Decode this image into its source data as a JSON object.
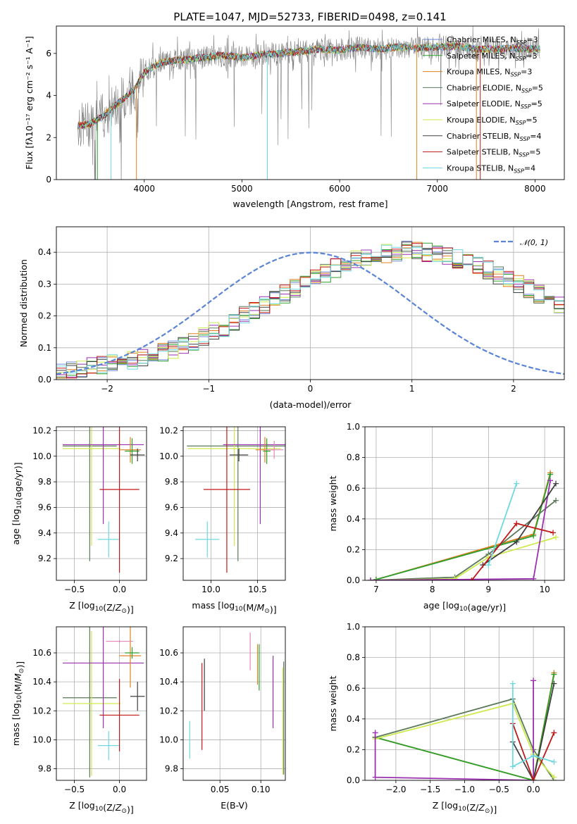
{
  "title": "PLATE=1047, MJD=52733, FIBERID=0498, z=0.141",
  "colors": {
    "Chabrier MILES": "#6f86d6",
    "Salpeter MILES": "#2ca02c",
    "Kroupa MILES": "#e08020",
    "Chabrier ELODIE": "#5a7a5a",
    "Salpeter ELODIE": "#9b30b0",
    "Kroupa ELODIE": "#cdea50",
    "Chabrier STELIB": "#404040",
    "Salpeter STELIB": "#c01818",
    "Kroupa STELIB": "#6fd8e0",
    "spectrum": "#808080",
    "pink": "#e088b8",
    "normal": "#5b84d6"
  },
  "chart_data": [
    {
      "id": "spectrum",
      "type": "line",
      "xlabel": "wavelength [Angstrom, rest frame]",
      "ylabel": "Flux [fλ10⁻¹⁷ erg cm⁻² s⁻¹ A⁻¹]",
      "xlim": [
        3100,
        8300
      ],
      "ylim": [
        0,
        7.3
      ],
      "xticks": [
        4000,
        5000,
        6000,
        7000,
        8000
      ],
      "yticks": [
        0,
        2,
        4,
        6
      ],
      "legend_position": "top-right",
      "legend": [
        {
          "key": "Chabrier MILES",
          "pre": "Chabrier MILES, N",
          "sub": "SSP",
          "post": "=3"
        },
        {
          "key": "Salpeter MILES",
          "pre": "Salpeter MILES, N",
          "sub": "SSP",
          "post": "=3"
        },
        {
          "key": "Kroupa MILES",
          "pre": "Kroupa MILES, N",
          "sub": "SSP",
          "post": "=3"
        },
        {
          "key": "Chabrier ELODIE",
          "pre": "Chabrier ELODIE, N",
          "sub": "SSP",
          "post": "=5"
        },
        {
          "key": "Salpeter ELODIE",
          "pre": "Salpeter ELODIE, N",
          "sub": "SSP",
          "post": "=5"
        },
        {
          "key": "Kroupa ELODIE",
          "pre": "Kroupa ELODIE, N",
          "sub": "SSP",
          "post": "=5"
        },
        {
          "key": "Chabrier STELIB",
          "pre": "Chabrier STELIB, N",
          "sub": "SSP",
          "post": "=4"
        },
        {
          "key": "Salpeter STELIB",
          "pre": "Salpeter STELIB, N",
          "sub": "SSP",
          "post": "=5"
        },
        {
          "key": "Kroupa STELIB",
          "pre": "Kroupa STELIB, N",
          "sub": "SSP",
          "post": "=4"
        }
      ],
      "data_wavelength": [
        3320,
        3450,
        3600,
        3750,
        3900,
        4000,
        4100,
        4200,
        4400,
        4600,
        4800,
        5000,
        5200,
        5400,
        5600,
        5800,
        6000,
        6200,
        6400,
        6600,
        6800,
        7000,
        7200,
        7400,
        7600,
        7800,
        8000,
        8050
      ],
      "data_flux": [
        2.55,
        2.65,
        3.1,
        3.7,
        4.3,
        5.1,
        5.4,
        5.6,
        5.7,
        5.8,
        5.9,
        5.8,
        5.95,
        6.0,
        6.1,
        6.2,
        6.15,
        6.3,
        6.2,
        6.3,
        6.25,
        6.3,
        6.35,
        6.2,
        6.2,
        6.25,
        6.2,
        6.2
      ],
      "model_dips": [
        {
          "key": "Salpeter MILES",
          "x": 3520
        },
        {
          "key": "Kroupa MILES",
          "x": 3920
        },
        {
          "key": "Kroupa STELIB",
          "x": 3660
        },
        {
          "key": "Kroupa STELIB",
          "x": 5260
        },
        {
          "key": "Kroupa MILES",
          "x": 6790
        },
        {
          "key": "Kroupa MILES",
          "x": 7400
        },
        {
          "key": "Salpeter STELIB",
          "x": 7440
        }
      ]
    },
    {
      "id": "residuals",
      "type": "bar",
      "xlabel": "(data-model)/error",
      "ylabel": "Normed distribution",
      "xlim": [
        -2.5,
        2.5
      ],
      "ylim": [
        0,
        0.48
      ],
      "xticks": [
        -2,
        -1,
        0,
        1,
        2
      ],
      "yticks": [
        0.0,
        0.1,
        0.2,
        0.3,
        0.4
      ],
      "grid": true,
      "legend_position": "top-right",
      "legend_label": "𝒩(0, 1)",
      "bin_width": 0.1,
      "bin_start": -2.5,
      "base_values": [
        0.025,
        0.03,
        0.035,
        0.04,
        0.045,
        0.05,
        0.055,
        0.06,
        0.07,
        0.075,
        0.085,
        0.095,
        0.11,
        0.12,
        0.135,
        0.15,
        0.165,
        0.18,
        0.2,
        0.215,
        0.235,
        0.25,
        0.27,
        0.285,
        0.3,
        0.32,
        0.335,
        0.35,
        0.36,
        0.375,
        0.385,
        0.39,
        0.395,
        0.4,
        0.405,
        0.405,
        0.4,
        0.395,
        0.39,
        0.38,
        0.37,
        0.36,
        0.345,
        0.33,
        0.315,
        0.3,
        0.285,
        0.27,
        0.25,
        0.235
      ]
    },
    {
      "id": "age-vs-Z",
      "type": "errorbar",
      "xlabel": "Z [log10(Z/Z⊙)]",
      "ylabel": "age [log10(age/yr)]",
      "xlim": [
        -0.7,
        0.3
      ],
      "ylim": [
        9.03,
        10.23
      ],
      "xticks": [
        -0.5,
        0.0
      ],
      "yticks": [
        9.2,
        9.4,
        9.6,
        9.8,
        10.0,
        10.2
      ],
      "points": [
        {
          "key": "Chabrier ELODIE",
          "x": -0.33,
          "y": 10.08,
          "xerr": 0.3,
          "yerr": 0.9
        },
        {
          "key": "Kroupa ELODIE",
          "x": -0.31,
          "y": 10.06,
          "xerr": 0.32,
          "yerr": 0.76
        },
        {
          "key": "Salpeter ELODIE",
          "x": -0.18,
          "y": 10.09,
          "xerr": 0.45,
          "yerr": 0.62
        },
        {
          "key": "Kroupa STELIB",
          "x": -0.12,
          "y": 9.35,
          "xerr": 0.12,
          "yerr": 0.14
        },
        {
          "key": "Salpeter STELIB",
          "x": 0.0,
          "y": 9.74,
          "xerr": 0.22,
          "yerr": 0.65
        },
        {
          "key": "Kroupa MILES",
          "x": 0.12,
          "y": 10.05,
          "xerr": 0.12,
          "yerr": 0.1
        },
        {
          "key": "Salpeter MILES",
          "x": 0.14,
          "y": 10.04,
          "xerr": 0.08,
          "yerr": 0.1
        },
        {
          "key": "Chabrier STELIB",
          "x": 0.2,
          "y": 10.01,
          "xerr": 0.08,
          "yerr": 0.05
        }
      ]
    },
    {
      "id": "age-vs-mass",
      "type": "errorbar",
      "xlabel": "mass [log10(M/M⊙)]",
      "ylabel": "",
      "xlim": [
        9.7,
        10.8
      ],
      "ylim": [
        9.03,
        10.23
      ],
      "xticks": [
        10.0,
        10.5
      ],
      "yticks": [
        9.2,
        9.4,
        9.6,
        9.8,
        10.0,
        10.2
      ],
      "points": [
        {
          "key": "Chabrier ELODIE",
          "x": 10.29,
          "y": 10.08,
          "xerr": 0.55,
          "yerr": 0.9
        },
        {
          "key": "Kroupa ELODIE",
          "x": 10.25,
          "y": 10.06,
          "xerr": 0.5,
          "yerr": 0.76
        },
        {
          "key": "Salpeter ELODIE",
          "x": 10.53,
          "y": 10.09,
          "xerr": 0.4,
          "yerr": 0.62
        },
        {
          "key": "Kroupa STELIB",
          "x": 9.96,
          "y": 9.35,
          "xerr": 0.13,
          "yerr": 0.14
        },
        {
          "key": "Salpeter STELIB",
          "x": 10.17,
          "y": 9.74,
          "xerr": 0.25,
          "yerr": 0.65
        },
        {
          "key": "Kroupa MILES",
          "x": 10.58,
          "y": 10.05,
          "xerr": 0.1,
          "yerr": 0.1
        },
        {
          "key": "Salpeter MILES",
          "x": 10.6,
          "y": 10.04,
          "xerr": 0.04,
          "yerr": 0.1
        },
        {
          "key": "Chabrier STELIB",
          "x": 10.3,
          "y": 10.01,
          "xerr": 0.1,
          "yerr": 0.05
        },
        {
          "key": "pink",
          "x": 10.68,
          "y": 10.05,
          "xerr": 0.1,
          "yerr": 0.07
        }
      ]
    },
    {
      "id": "weight-vs-age",
      "type": "line",
      "xlabel": "age [log10(age/yr)]",
      "ylabel": "mass weight",
      "xlim": [
        6.8,
        10.35
      ],
      "ylim": [
        0,
        1.0
      ],
      "xticks": [
        7,
        8,
        9,
        10
      ],
      "yticks": [
        0.0,
        0.2,
        0.4,
        0.6,
        0.8,
        1.0
      ],
      "grid": true,
      "series": [
        {
          "key": "Kroupa MILES",
          "x": [
            7.0,
            9.8,
            10.1
          ],
          "y": [
            0.005,
            0.3,
            0.7
          ]
        },
        {
          "key": "Salpeter MILES",
          "x": [
            7.0,
            9.8,
            10.1
          ],
          "y": [
            0.005,
            0.29,
            0.69
          ]
        },
        {
          "key": "Chabrier ELODIE",
          "x": [
            6.9,
            8.4,
            9.0,
            10.2
          ],
          "y": [
            0.0,
            0.02,
            0.17,
            0.52
          ]
        },
        {
          "key": "Kroupa ELODIE",
          "x": [
            6.9,
            8.4,
            9.0,
            10.2
          ],
          "y": [
            0.0,
            0.01,
            0.15,
            0.28
          ]
        },
        {
          "key": "Salpeter ELODIE",
          "x": [
            6.9,
            9.8,
            10.1
          ],
          "y": [
            0.0,
            0.01,
            0.65
          ]
        },
        {
          "key": "Chabrier STELIB",
          "x": [
            8.9,
            9.5,
            10.2
          ],
          "y": [
            0.1,
            0.25,
            0.63
          ]
        },
        {
          "key": "Salpeter STELIB",
          "x": [
            8.7,
            9.5,
            10.15
          ],
          "y": [
            0.0,
            0.37,
            0.31
          ]
        },
        {
          "key": "Kroupa STELIB",
          "x": [
            9.0,
            9.5
          ],
          "y": [
            0.1,
            0.63
          ]
        }
      ]
    },
    {
      "id": "mass-vs-Z",
      "type": "errorbar",
      "xlabel": "Z [log10(Z/Z⊙)]",
      "ylabel": "mass [log10(M/M⊙)]",
      "xlim": [
        -0.7,
        0.3
      ],
      "ylim": [
        9.72,
        10.78
      ],
      "xticks": [
        -0.5,
        0.0
      ],
      "yticks": [
        9.8,
        10.0,
        10.2,
        10.4,
        10.6
      ],
      "points": [
        {
          "key": "Chabrier ELODIE",
          "x": -0.33,
          "y": 10.29,
          "xerr": 0.3,
          "yerr": 0.55
        },
        {
          "key": "Kroupa ELODIE",
          "x": -0.31,
          "y": 10.25,
          "xerr": 0.32,
          "yerr": 0.5
        },
        {
          "key": "Salpeter ELODIE",
          "x": -0.18,
          "y": 10.53,
          "xerr": 0.45,
          "yerr": 0.45
        },
        {
          "key": "Kroupa STELIB",
          "x": -0.12,
          "y": 9.96,
          "xerr": 0.12,
          "yerr": 0.1
        },
        {
          "key": "Salpeter STELIB",
          "x": 0.0,
          "y": 10.17,
          "xerr": 0.22,
          "yerr": 0.25
        },
        {
          "key": "Kroupa MILES",
          "x": 0.12,
          "y": 10.58,
          "xerr": 0.12,
          "yerr": 0.22
        },
        {
          "key": "Salpeter MILES",
          "x": 0.14,
          "y": 10.6,
          "xerr": 0.08,
          "yerr": 0.04
        },
        {
          "key": "Chabrier STELIB",
          "x": 0.2,
          "y": 10.3,
          "xerr": 0.08,
          "yerr": 0.1
        },
        {
          "key": "pink",
          "x": 0.0,
          "y": 10.68,
          "xerr": 0.15,
          "yerr": 0.01
        }
      ]
    },
    {
      "id": "mass-vs-ebv",
      "type": "errorbar",
      "xlabel": "E(B-V)",
      "ylabel": "",
      "xlim": [
        0.005,
        0.13
      ],
      "ylim": [
        9.72,
        10.78
      ],
      "xticks": [
        0.05,
        0.1
      ],
      "yticks": [
        9.8,
        10.0,
        10.2,
        10.4,
        10.6
      ],
      "points": [
        {
          "key": "Kroupa STELIB",
          "x": 0.013,
          "y": 10.0,
          "yerr": 0.13
        },
        {
          "key": "Salpeter STELIB",
          "x": 0.028,
          "y": 10.23,
          "yerr": 0.3
        },
        {
          "key": "Chabrier STELIB",
          "x": 0.031,
          "y": 10.38,
          "yerr": 0.18
        },
        {
          "key": "pink",
          "x": 0.087,
          "y": 10.61,
          "yerr": 0.13
        },
        {
          "key": "Kroupa MILES",
          "x": 0.096,
          "y": 10.52,
          "yerr": 0.14
        },
        {
          "key": "Salpeter MILES",
          "x": 0.098,
          "y": 10.5,
          "yerr": 0.16
        },
        {
          "key": "Salpeter ELODIE",
          "x": 0.115,
          "y": 10.33,
          "yerr": 0.25
        },
        {
          "key": "Chabrier ELODIE",
          "x": 0.128,
          "y": 10.15,
          "yerr": 0.39
        },
        {
          "key": "Kroupa ELODIE",
          "x": 0.127,
          "y": 10.13,
          "yerr": 0.37
        }
      ]
    },
    {
      "id": "weight-vs-Z",
      "type": "line",
      "xlabel": "Z [log10(Z/Z⊙)]",
      "ylabel": "mass weight",
      "xlim": [
        -2.45,
        0.45
      ],
      "ylim": [
        0,
        1.0
      ],
      "xticks": [
        -2.0,
        -1.5,
        -1.0,
        -0.5,
        0.0
      ],
      "yticks": [
        0.0,
        0.2,
        0.4,
        0.6,
        0.8,
        1.0
      ],
      "grid": true,
      "series": [
        {
          "key": "Kroupa MILES",
          "x": [
            -2.3,
            0.0,
            0.3
          ],
          "y": [
            0.28,
            0.0,
            0.7
          ]
        },
        {
          "key": "Salpeter MILES",
          "x": [
            -2.3,
            0.0,
            0.3
          ],
          "y": [
            0.28,
            0.0,
            0.69
          ]
        },
        {
          "key": "Chabrier ELODIE",
          "x": [
            -2.3,
            -0.3,
            0.0,
            0.3
          ],
          "y": [
            0.28,
            0.53,
            0.2,
            0.0
          ]
        },
        {
          "key": "Kroupa ELODIE",
          "x": [
            -2.3,
            -0.3,
            0.0,
            0.3
          ],
          "y": [
            0.27,
            0.5,
            0.17,
            0.02
          ]
        },
        {
          "key": "Salpeter ELODIE",
          "x": [
            -2.3,
            -2.3,
            0.0,
            0.0
          ],
          "y": [
            0.31,
            0.02,
            0.0,
            0.65
          ]
        },
        {
          "key": "Chabrier STELIB",
          "x": [
            -0.3,
            0.0,
            0.3
          ],
          "y": [
            0.25,
            0.0,
            0.63
          ]
        },
        {
          "key": "Salpeter STELIB",
          "x": [
            -0.3,
            0.0,
            0.3
          ],
          "y": [
            0.37,
            0.0,
            0.31
          ]
        },
        {
          "key": "Kroupa STELIB",
          "x": [
            -0.3,
            -0.3,
            0.0,
            0.3
          ],
          "y": [
            0.63,
            0.09,
            0.16,
            0.12
          ]
        }
      ]
    }
  ]
}
